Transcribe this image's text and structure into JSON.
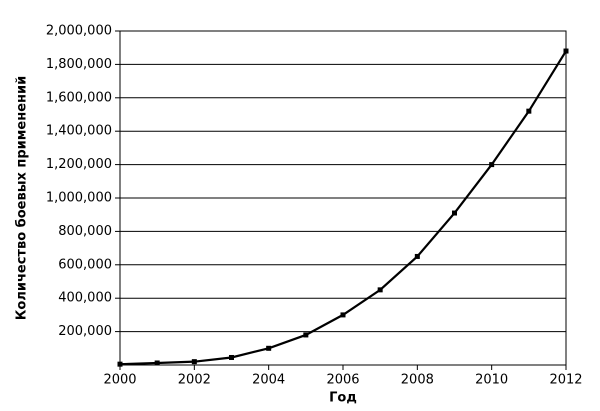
{
  "chart_data": {
    "type": "line",
    "x_label": "Год",
    "y_label": "Количество  боевых применений",
    "x": [
      2000,
      2001,
      2002,
      2003,
      2004,
      2005,
      2006,
      2007,
      2008,
      2009,
      2010,
      2011,
      2012
    ],
    "values": [
      5000,
      12000,
      20000,
      45000,
      100000,
      180000,
      300000,
      450000,
      650000,
      910000,
      1200000,
      1520000,
      1880000
    ],
    "color": "#000000",
    "xlim": [
      2000,
      2012
    ],
    "xticks": [
      2000,
      2002,
      2004,
      2006,
      2008,
      2010,
      2012
    ],
    "ylim": [
      0,
      2000000
    ],
    "yticks": [
      {
        "value": 200000,
        "label": "200,000"
      },
      {
        "value": 400000,
        "label": "400,000"
      },
      {
        "value": 600000,
        "label": "600,000"
      },
      {
        "value": 800000,
        "label": "800,000"
      },
      {
        "value": 1000000,
        "label": "1,000,000"
      },
      {
        "value": 1200000,
        "label": "1,200,000"
      },
      {
        "value": 1400000,
        "label": "1,400,000"
      },
      {
        "value": 1600000,
        "label": "1,600,000"
      },
      {
        "value": 1800000,
        "label": "1,800,000"
      },
      {
        "value": 2000000,
        "label": "2,000,000"
      }
    ],
    "grid": true
  }
}
